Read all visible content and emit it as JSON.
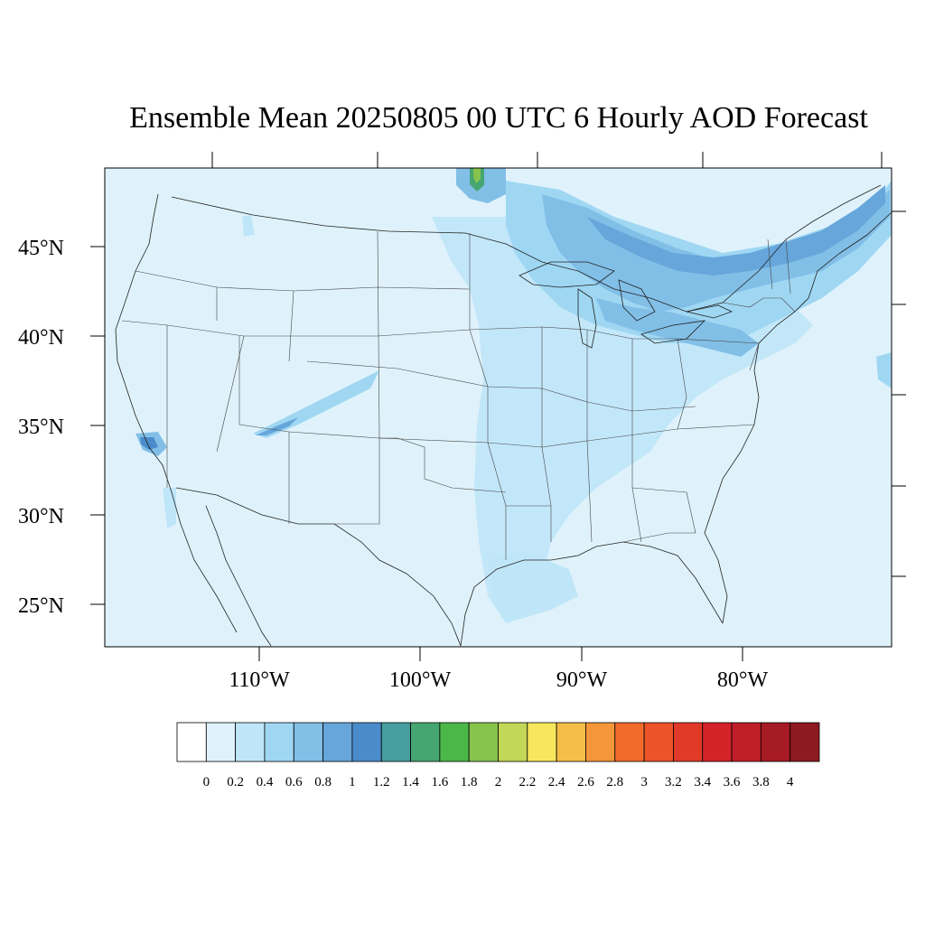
{
  "title": "Ensemble Mean 20250805 00 UTC 6 Hourly AOD Forecast",
  "map": {
    "lat_labels": [
      "45°N",
      "40°N",
      "35°N",
      "30°N",
      "25°N"
    ],
    "lon_labels": [
      "110°W",
      "100°W",
      "90°W",
      "80°W"
    ],
    "background_color": "#dff2fb"
  },
  "colorbar": {
    "labels": [
      "0",
      "0.2",
      "0.4",
      "0.6",
      "0.8",
      "1",
      "1.2",
      "1.4",
      "1.6",
      "1.8",
      "2",
      "2.2",
      "2.4",
      "2.6",
      "2.8",
      "3",
      "3.2",
      "3.4",
      "3.6",
      "3.8",
      "4"
    ],
    "colors": [
      "#ffffff",
      "#dff2fb",
      "#bfe6f8",
      "#9fd7f3",
      "#82bfe7",
      "#66a6db",
      "#4a8ccb",
      "#479e9e",
      "#45a672",
      "#4bb748",
      "#86c44e",
      "#c2d657",
      "#f7e75d",
      "#f6be48",
      "#f5963b",
      "#f26b2b",
      "#ec5329",
      "#e23a28",
      "#d42229",
      "#bf1f28",
      "#a61b24",
      "#8d1a1f"
    ]
  }
}
